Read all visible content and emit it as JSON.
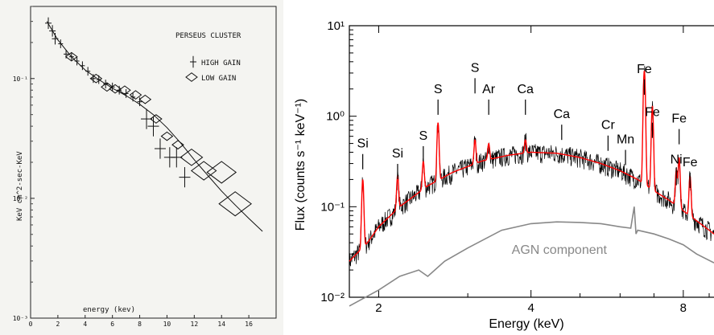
{
  "chart_data": [
    {
      "type": "scatter",
      "title": "PERSEUS CLUSTER",
      "xlabel": "energy (kev)",
      "ylabel": "KeV cm^2-sec-KeV",
      "xlim": [
        0,
        18
      ],
      "ylim": [
        0.001,
        0.4
      ],
      "yscale": "log",
      "grid": false,
      "x_ticks": [
        "0",
        "2",
        "4",
        "6",
        "8",
        "10",
        "12",
        "14",
        "16"
      ],
      "y_ticks": [
        {
          "value": 0.1,
          "label": "10⁻¹"
        },
        {
          "value": 0.01,
          "label": "10⁻²"
        },
        {
          "value": 0.001,
          "label": "10⁻³"
        }
      ],
      "legend_position": "top-right",
      "model_line": {
        "x": [
          1.2,
          2,
          3,
          4,
          5,
          6,
          7,
          8,
          9,
          10,
          11,
          12,
          13,
          14,
          15,
          16,
          17
        ],
        "y": [
          0.3,
          0.21,
          0.152,
          0.118,
          0.098,
          0.083,
          0.072,
          0.061,
          0.05,
          0.039,
          0.029,
          0.021,
          0.0155,
          0.0115,
          0.0088,
          0.0068,
          0.0053
        ]
      },
      "series": [
        {
          "name": "HIGH GAIN",
          "marker": "cross",
          "points": [
            {
              "x": 1.3,
              "y": 0.29
            },
            {
              "x": 1.6,
              "y": 0.25
            },
            {
              "x": 1.8,
              "y": 0.215
            },
            {
              "x": 2.2,
              "y": 0.195
            },
            {
              "x": 2.6,
              "y": 0.16
            },
            {
              "x": 3.0,
              "y": 0.152
            },
            {
              "x": 3.4,
              "y": 0.14
            },
            {
              "x": 3.8,
              "y": 0.128
            },
            {
              "x": 4.2,
              "y": 0.115
            },
            {
              "x": 4.6,
              "y": 0.1
            },
            {
              "x": 5.0,
              "y": 0.098
            },
            {
              "x": 5.5,
              "y": 0.09
            },
            {
              "x": 6.0,
              "y": 0.085
            },
            {
              "x": 6.5,
              "y": 0.08
            },
            {
              "x": 7.0,
              "y": 0.075
            },
            {
              "x": 7.5,
              "y": 0.07
            },
            {
              "x": 8.0,
              "y": 0.064
            },
            {
              "x": 8.5,
              "y": 0.046
            },
            {
              "x": 9.0,
              "y": 0.04
            },
            {
              "x": 9.5,
              "y": 0.026
            },
            {
              "x": 10.2,
              "y": 0.022
            },
            {
              "x": 10.7,
              "y": 0.022
            },
            {
              "x": 11.3,
              "y": 0.015
            }
          ]
        },
        {
          "name": "LOW GAIN",
          "marker": "diamond",
          "points": [
            {
              "x": 3.0,
              "y": 0.152
            },
            {
              "x": 4.8,
              "y": 0.1
            },
            {
              "x": 5.6,
              "y": 0.085
            },
            {
              "x": 6.2,
              "y": 0.082
            },
            {
              "x": 6.9,
              "y": 0.08
            },
            {
              "x": 7.7,
              "y": 0.073
            },
            {
              "x": 8.4,
              "y": 0.067
            },
            {
              "x": 9.2,
              "y": 0.046
            },
            {
              "x": 10.0,
              "y": 0.033
            },
            {
              "x": 10.8,
              "y": 0.028
            },
            {
              "x": 11.8,
              "y": 0.022
            },
            {
              "x": 12.7,
              "y": 0.017
            },
            {
              "x": 14.0,
              "y": 0.0165
            },
            {
              "x": 15.0,
              "y": 0.009
            }
          ]
        }
      ]
    },
    {
      "type": "line",
      "xlabel": "Energy (keV)",
      "ylabel": "Flux (counts s⁻¹ keV⁻¹)",
      "xscale": "log",
      "yscale": "log",
      "xlim": [
        1.75,
        9.2
      ],
      "ylim": [
        0.01,
        10
      ],
      "grid": false,
      "x_ticks": [
        "2",
        "4",
        "8"
      ],
      "y_ticks": [
        {
          "value": 0.01,
          "label": "10⁻²"
        },
        {
          "value": 0.1,
          "label": "10⁻¹"
        },
        {
          "value": 1,
          "label": "10⁰"
        },
        {
          "value": 10,
          "label": "10¹"
        }
      ],
      "colors": {
        "data": "#000000",
        "model": "#ff0000",
        "agn": "#888888"
      },
      "continuum": {
        "x": [
          1.75,
          1.9,
          2.0,
          2.2,
          2.5,
          2.8,
          3.2,
          3.6,
          4.0,
          4.5,
          5.0,
          5.5,
          6.0,
          6.5,
          7.0,
          7.5,
          8.0,
          8.5,
          9.0,
          9.2
        ],
        "y": [
          0.025,
          0.04,
          0.06,
          0.1,
          0.17,
          0.24,
          0.32,
          0.37,
          0.4,
          0.39,
          0.35,
          0.3,
          0.25,
          0.2,
          0.15,
          0.118,
          0.09,
          0.07,
          0.055,
          0.05
        ]
      },
      "emission_lines": [
        {
          "label": "Si",
          "energy": 1.86,
          "peak": 0.2,
          "label_flux": 0.45
        },
        {
          "label": "Si",
          "energy": 2.18,
          "peak": 0.22,
          "label_flux": 0.35
        },
        {
          "label": "S",
          "energy": 2.45,
          "peak": 0.32,
          "label_flux": 0.55
        },
        {
          "label": "S",
          "energy": 2.62,
          "peak": 0.85,
          "label_flux": 1.8
        },
        {
          "label": "S",
          "energy": 3.1,
          "peak": 0.55,
          "label_flux": 3.1
        },
        {
          "label": "Ar",
          "energy": 3.3,
          "peak": 0.5,
          "label_flux": 1.8
        },
        {
          "label": "Ca",
          "energy": 3.9,
          "peak": 0.55,
          "label_flux": 1.8
        },
        {
          "label": "Ca",
          "energy": 4.6,
          "peak": 0.0,
          "label_flux": 0.95
        },
        {
          "label": "Cr",
          "energy": 5.68,
          "peak": 0.0,
          "label_flux": 0.72
        },
        {
          "label": "Mn",
          "energy": 6.15,
          "peak": 0.0,
          "label_flux": 0.5
        },
        {
          "label": "Fe",
          "energy": 6.7,
          "peak": 3.2,
          "label_flux": 3.0
        },
        {
          "label": "Fe",
          "energy": 6.95,
          "peak": 1.3,
          "label_flux": 1.0
        },
        {
          "label": "Fe",
          "energy": 7.85,
          "peak": 0.35,
          "label_flux": 0.85
        },
        {
          "label": "Ni",
          "energy": 7.75,
          "peak": 0.25,
          "label_flux": 0.3
        },
        {
          "label": "Fe",
          "energy": 8.25,
          "peak": 0.22,
          "label_flux": 0.28
        }
      ],
      "agn_component": {
        "label": "AGN component",
        "x": [
          1.75,
          2.0,
          2.2,
          2.4,
          2.5,
          2.7,
          3.0,
          3.5,
          4.0,
          4.5,
          5.0,
          5.5,
          6.0,
          6.3,
          6.4,
          6.45,
          6.5,
          7.0,
          7.5,
          8.0,
          8.5,
          9.2
        ],
        "y": [
          0.008,
          0.012,
          0.017,
          0.02,
          0.017,
          0.025,
          0.035,
          0.055,
          0.065,
          0.068,
          0.067,
          0.065,
          0.06,
          0.058,
          0.1,
          0.05,
          0.055,
          0.05,
          0.044,
          0.038,
          0.03,
          0.024
        ]
      }
    }
  ]
}
